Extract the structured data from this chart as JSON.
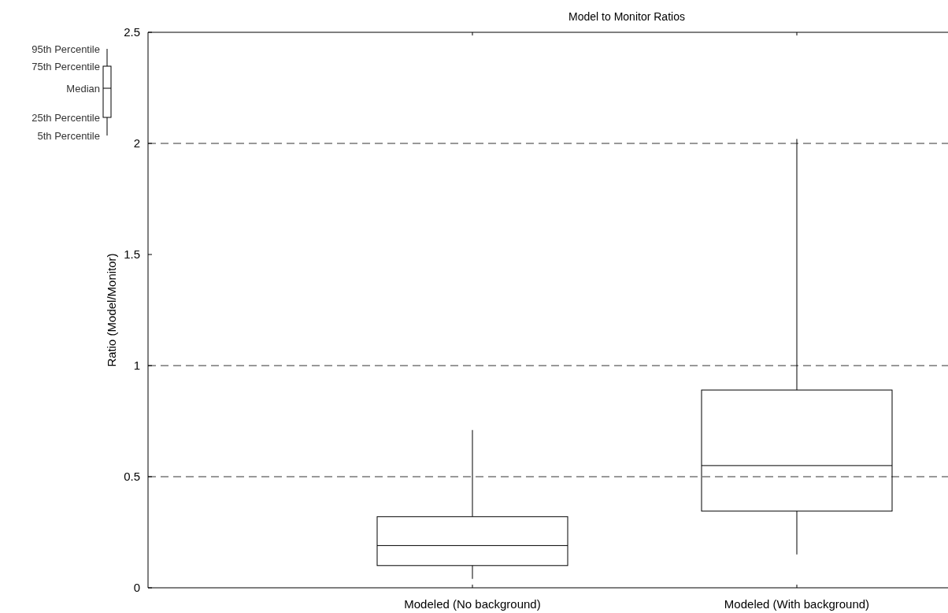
{
  "chart_data": {
    "type": "box",
    "title": "Model to Monitor Ratios",
    "ylabel": "Ratio (Model/Monitor)",
    "categories": [
      "Modeled (No background)",
      "Modeled (With background)"
    ],
    "boxes": [
      {
        "low": 0.04,
        "q1": 0.1,
        "median": 0.19,
        "q3": 0.32,
        "high": 0.71
      },
      {
        "low": 0.15,
        "q1": 0.345,
        "median": 0.55,
        "q3": 0.89,
        "high": 2.02
      }
    ],
    "ylim": [
      0,
      2.5
    ],
    "yticks": [
      0,
      0.5,
      1,
      1.5,
      2,
      2.5
    ],
    "ref_lines": [
      {
        "axis": "y",
        "value": 0.5,
        "line_style": "dashed"
      },
      {
        "axis": "y",
        "value": 1,
        "line_style": "dashed"
      },
      {
        "axis": "y",
        "value": 2,
        "line_style": "dashed"
      }
    ],
    "annotations": [
      "95th Percentile",
      "75th Percentile",
      "Median",
      "25th Percentile",
      "5th Percentile"
    ],
    "grid": false
  }
}
